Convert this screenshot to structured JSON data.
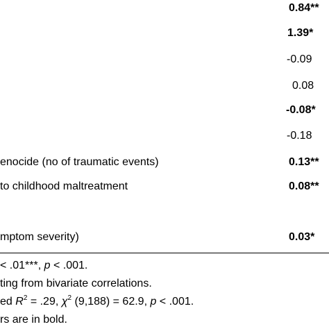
{
  "table": {
    "rows": [
      {
        "label": "",
        "value": "0.84**",
        "bold": true
      },
      {
        "label": "",
        "value": "1.39*",
        "bold": true
      },
      {
        "label": "",
        "value": "-0.09",
        "bold": false
      },
      {
        "label": "",
        "value": "0.08",
        "bold": false
      },
      {
        "label": "",
        "value": "-0.08*",
        "bold": true
      },
      {
        "label": "",
        "value": "-0.18",
        "bold": false
      },
      {
        "label": "enocide (no of traumatic events)",
        "value": "0.13**",
        "bold": true
      },
      {
        "label": "to childhood maltreatment",
        "value": "0.08**",
        "bold": true
      },
      {
        "label": "mptom severity)",
        "value": "0.03*",
        "bold": true
      }
    ]
  },
  "notes": {
    "line1_a": "< .01***, ",
    "line1_p": "p",
    "line1_b": " < .001.",
    "line2": "ting from bivariate correlations.",
    "line3_a": "ed ",
    "line3_R": "R",
    "line3_sup": "2",
    "line3_b": " = .29, ",
    "line3_chi": "χ",
    "line3_sup2": "2",
    "line3_c": " (9,188) = 62.9, ",
    "line3_p": "p",
    "line3_d": " < .001.",
    "line4": "rs are in bold."
  }
}
